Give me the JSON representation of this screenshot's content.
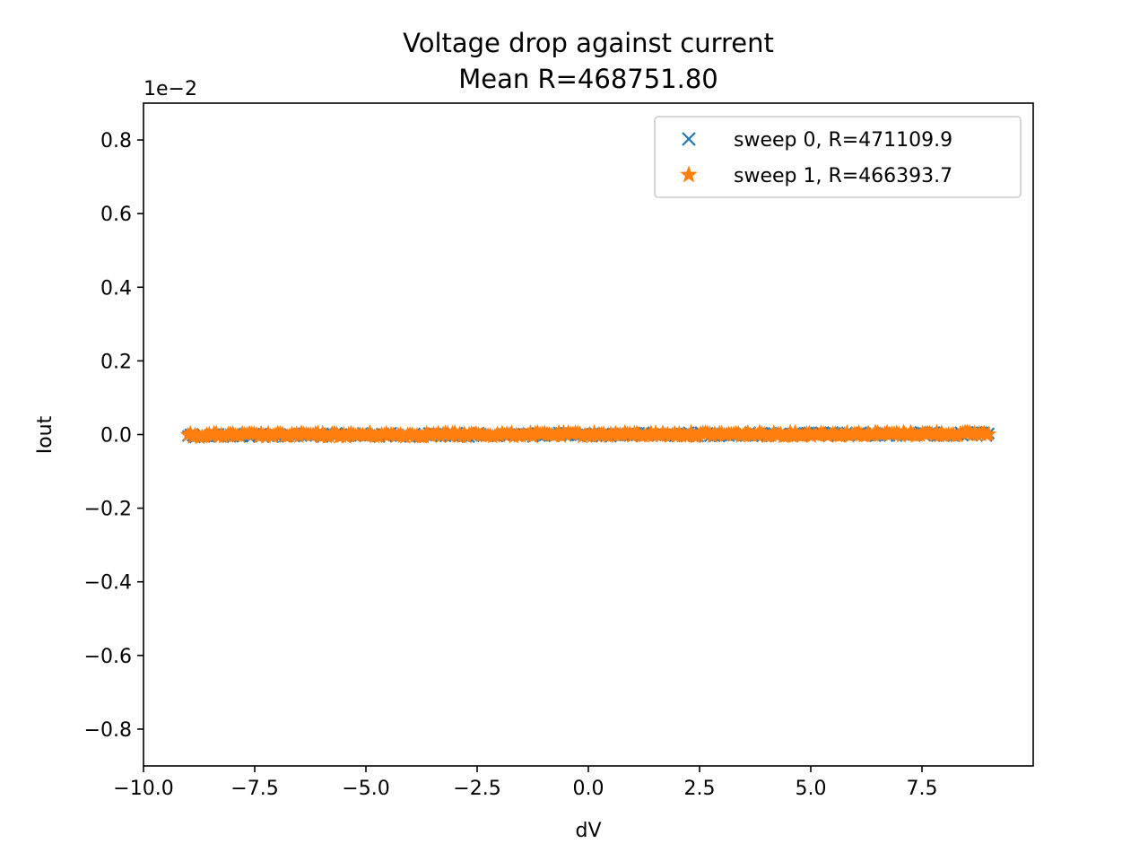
{
  "chart_data": {
    "type": "scatter",
    "title": "Voltage drop against current",
    "subtitle": "Mean R=468751.80",
    "xlabel": "dV",
    "ylabel": "Iout",
    "y_multiplier": "1e−2",
    "xlim": [
      -10.0,
      10.0
    ],
    "ylim": [
      -0.009,
      0.009
    ],
    "x_ticks": [
      -10.0,
      -7.5,
      -5.0,
      -2.5,
      0.0,
      2.5,
      5.0,
      7.5
    ],
    "x_tick_labels": [
      "−10.0",
      "−7.5",
      "−5.0",
      "−2.5",
      "0.0",
      "2.5",
      "5.0",
      "7.5"
    ],
    "y_ticks": [
      -0.008,
      -0.006,
      -0.004,
      -0.002,
      0.0,
      0.002,
      0.004,
      0.006,
      0.008
    ],
    "y_tick_labels": [
      "−0.8",
      "−0.6",
      "−0.4",
      "−0.2",
      "0.0",
      "0.2",
      "0.4",
      "0.6",
      "0.8"
    ],
    "grid": false,
    "legend_position": "top-right",
    "series": [
      {
        "name": "sweep 0, R=471109.9",
        "marker": "x",
        "color": "#1f77b4",
        "x_range": [
          -9.0,
          9.0
        ],
        "resistance": 471109.9
      },
      {
        "name": "sweep 1, R=466393.7",
        "marker": "star",
        "color": "#ff7f0e",
        "x_range": [
          -9.0,
          9.0
        ],
        "resistance": 466393.7
      }
    ]
  }
}
